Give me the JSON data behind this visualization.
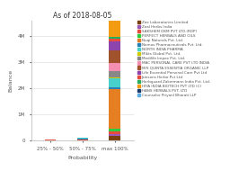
{
  "title": "As of 2018-08-05",
  "xlabel": "Probability",
  "ylabel": "Balance",
  "categories": [
    "25% - 50%",
    "50% - 75%",
    "max 100%"
  ],
  "companies": [
    "Zee Laboratories Limited",
    "Zeal Herbs India",
    "SAKSHEM DKM PVT LTD.(RDP)",
    "PERFECT HERBALS AND OILS",
    "Nuqi Naturals Pvt. Ltd.",
    "Nemos Pharmaceuticals Pvt. Ltd.",
    "NORTH INDIA PHARMA",
    "Mikts Global Pvt. Ltd.",
    "Medilife Impex Pvt. Ltd.",
    "MAC PERSONAL CARE PVT LTD INDIA",
    "M/S QUINTA ESSENTIA ORGANIC LLP",
    "Life Essential Personal Care Pvt Ltd",
    "Jainsons Herbo Pvt Ltd",
    "Herbguard Zakermann India Pvt. Ltd.",
    "HIYA INDIA BIOTECH PVT LTD (C)",
    "HANS HERBALS PVT. LTD",
    "Counselor Priyanl Bharati LLP"
  ],
  "colors": [
    "#7B3F10",
    "#9B59B6",
    "#E74C3C",
    "#2ECC40",
    "#E67E22",
    "#2980B9",
    "#48D1CC",
    "#CCCC00",
    "#888888",
    "#F48FB1",
    "#A0522D",
    "#8E44AD",
    "#E74C3C",
    "#27AE60",
    "#F39C12",
    "#1A3A6A",
    "#5DADE2"
  ],
  "values": {
    "25% - 50%": [
      0,
      0,
      30000,
      0,
      0,
      0,
      0,
      0,
      0,
      0,
      0,
      0,
      0,
      0,
      0,
      0,
      0
    ],
    "50% - 75%": [
      0,
      0,
      30000,
      0,
      0,
      30000,
      50000,
      0,
      0,
      0,
      0,
      0,
      0,
      0,
      0,
      0,
      0
    ],
    "max 100%": [
      150000,
      100000,
      80000,
      120000,
      1500000,
      80000,
      350000,
      30000,
      250000,
      300000,
      500000,
      350000,
      80000,
      80000,
      1400000,
      120000,
      150000
    ]
  },
  "yticks": [
    0,
    1000000,
    2000000,
    3000000,
    4000000
  ],
  "ytick_labels": [
    "0",
    "1M",
    "2M",
    "3M",
    "4M"
  ],
  "ylim": 4600000,
  "bar_width": 0.35,
  "figsize": [
    2.66,
    1.9
  ],
  "dpi": 100,
  "background_color": "#ffffff"
}
